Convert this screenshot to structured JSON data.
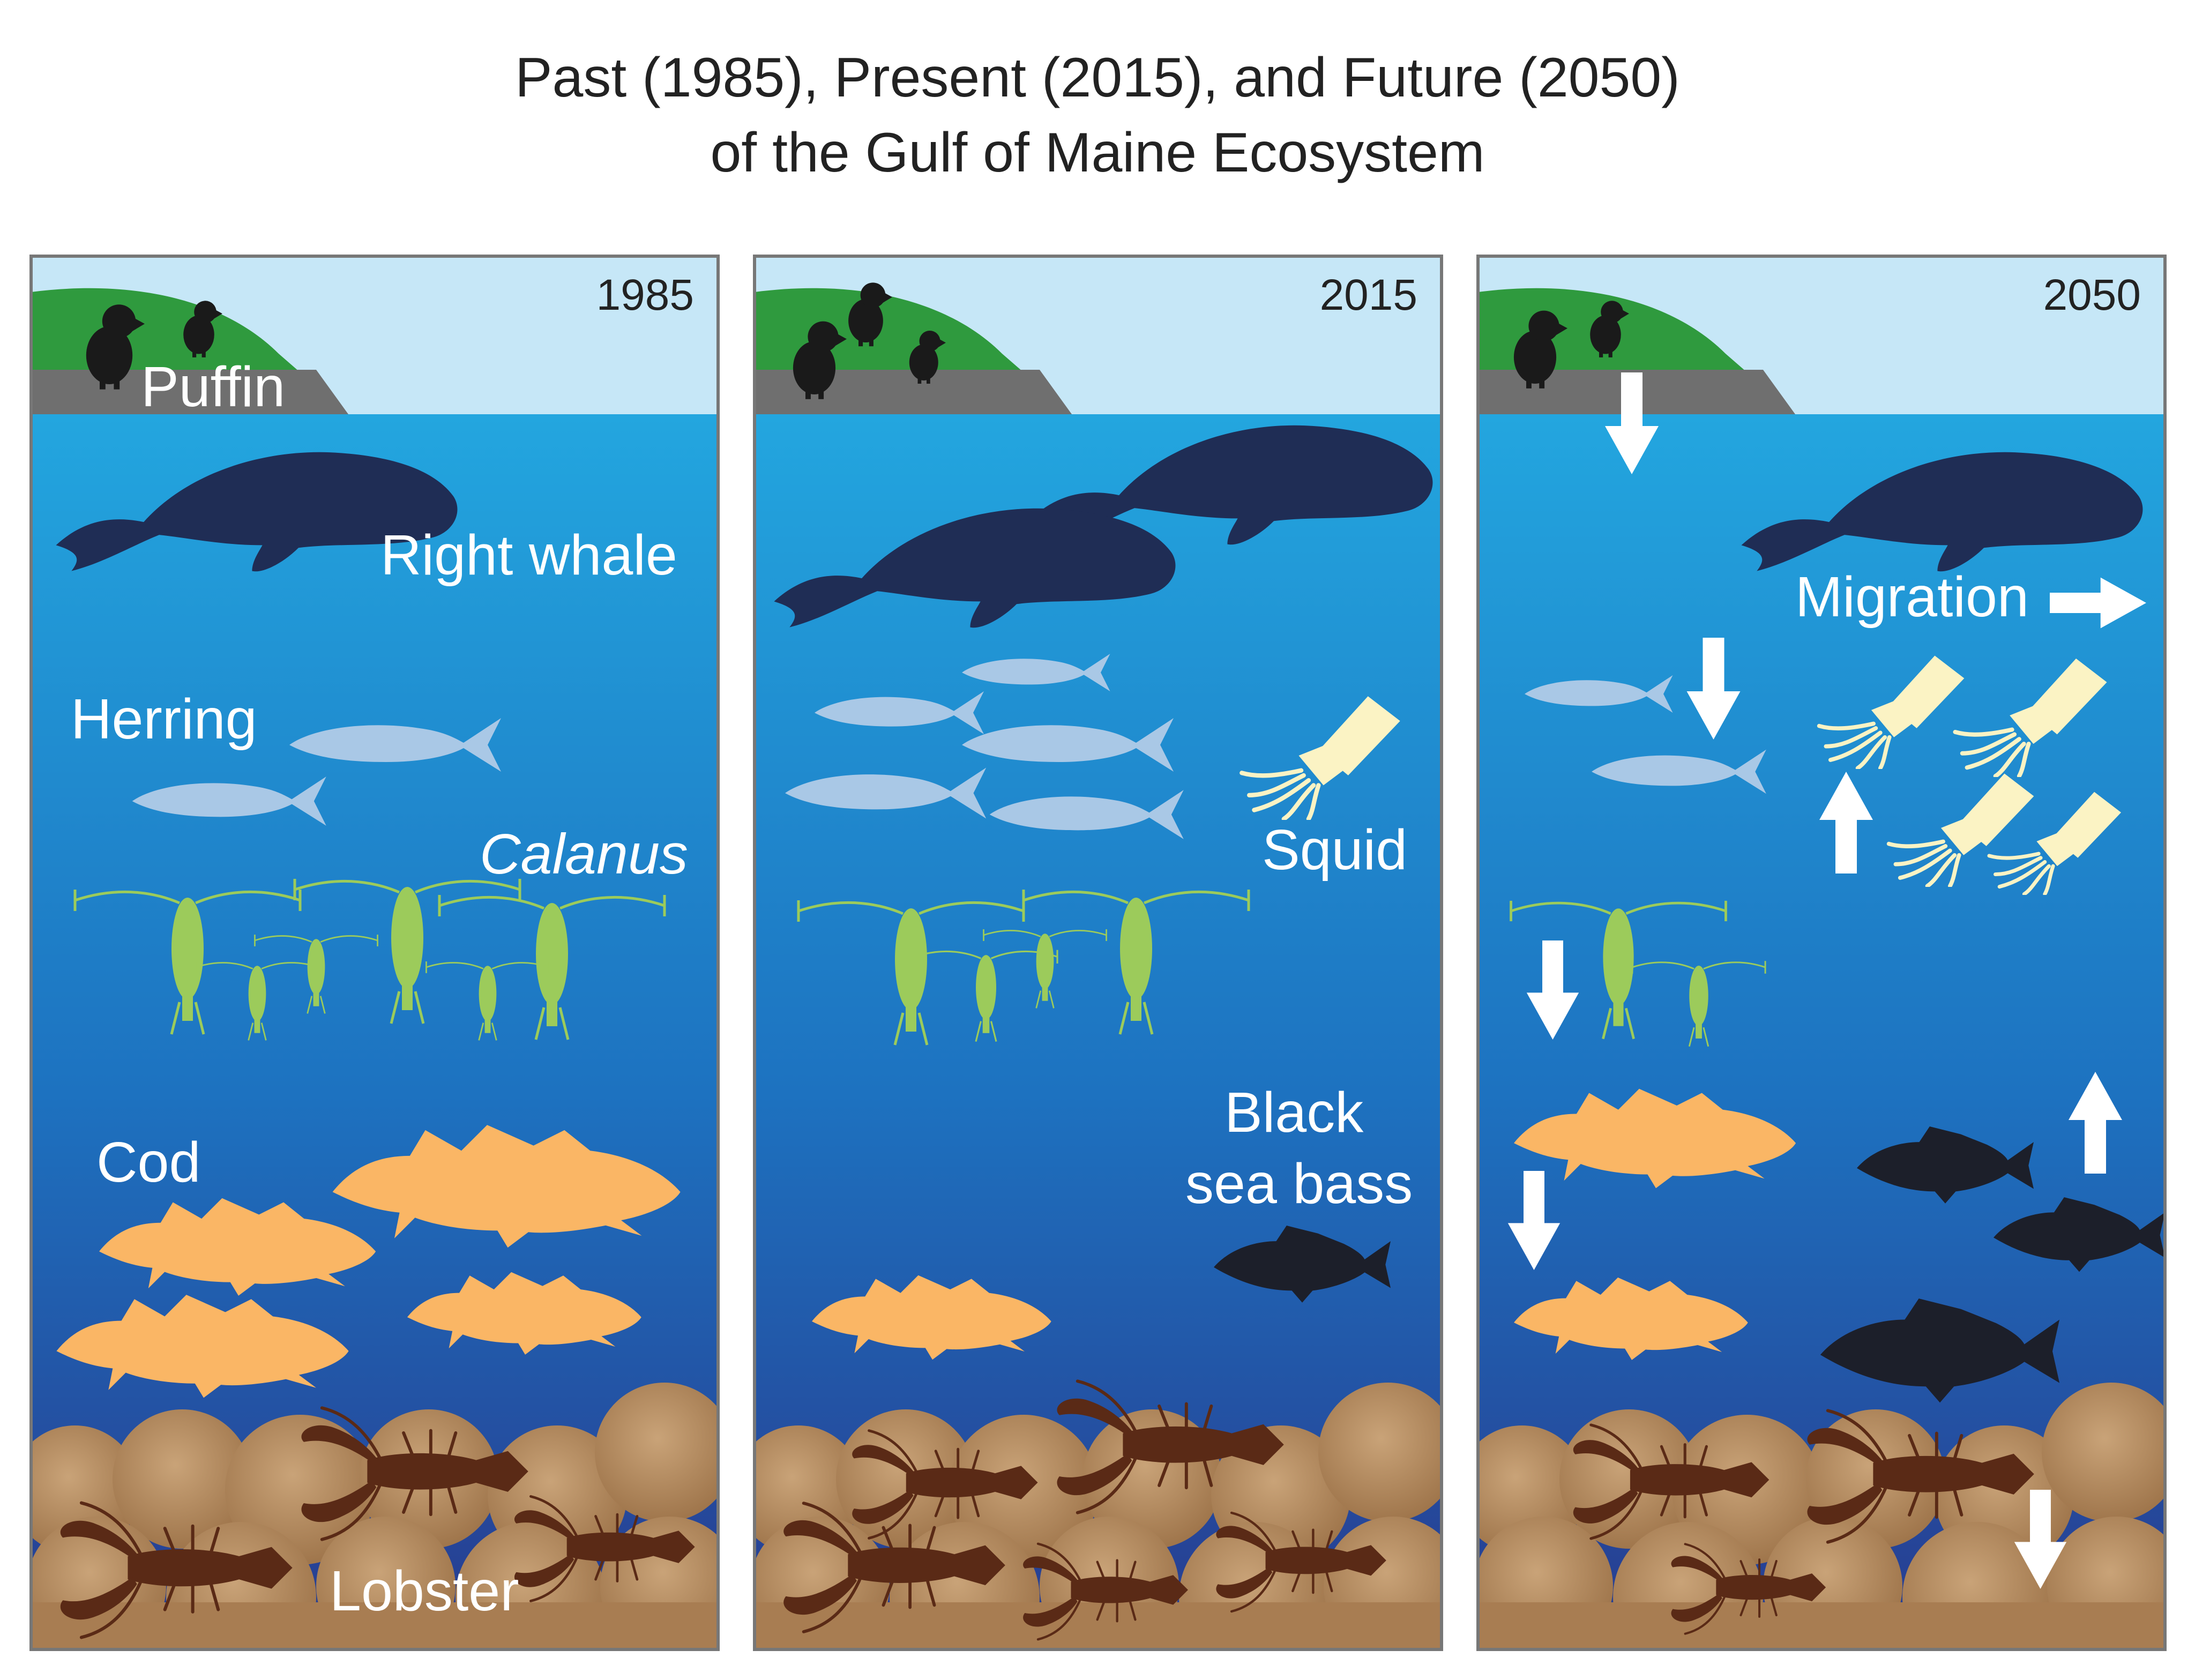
{
  "title": {
    "line1": "Past (1985), Present (2015), and Future (2050)",
    "line2": "of the Gulf of Maine Ecosystem"
  },
  "panels": [
    {
      "year": "1985",
      "labels": {
        "puffin": "Puffin",
        "right_whale": "Right whale",
        "herring": "Herring",
        "calanus": "Calanus",
        "cod": "Cod",
        "lobster": "Lobster"
      }
    },
    {
      "year": "2015",
      "labels": {
        "squid": "Squid",
        "black_sea_bass_line1": "Black",
        "black_sea_bass_line2": "sea bass"
      }
    },
    {
      "year": "2050",
      "labels": {
        "migration": "Migration"
      }
    }
  ],
  "colors": {
    "sky": "#c6e7f7",
    "water_top": "#23a6df",
    "water_bottom": "#283a8e",
    "land_green": "#2f9a3e",
    "rock_gray": "#6f6f6f",
    "whale": "#1f2d55",
    "herring": "#a9c8e6",
    "calanus": "#9ccb5b",
    "cod": "#fab665",
    "squid": "#fbf3c4",
    "sea_bass": "#1c1f2a",
    "lobster": "#5a2a16",
    "seafloor": "#b48a5c",
    "arrow": "#ffffff"
  },
  "icons": [
    "puffin-icon",
    "whale-icon",
    "herring-icon",
    "calanus-icon",
    "cod-icon",
    "squid-icon",
    "sea-bass-icon",
    "lobster-icon",
    "arrow-down-icon",
    "arrow-up-icon",
    "arrow-right-icon"
  ]
}
